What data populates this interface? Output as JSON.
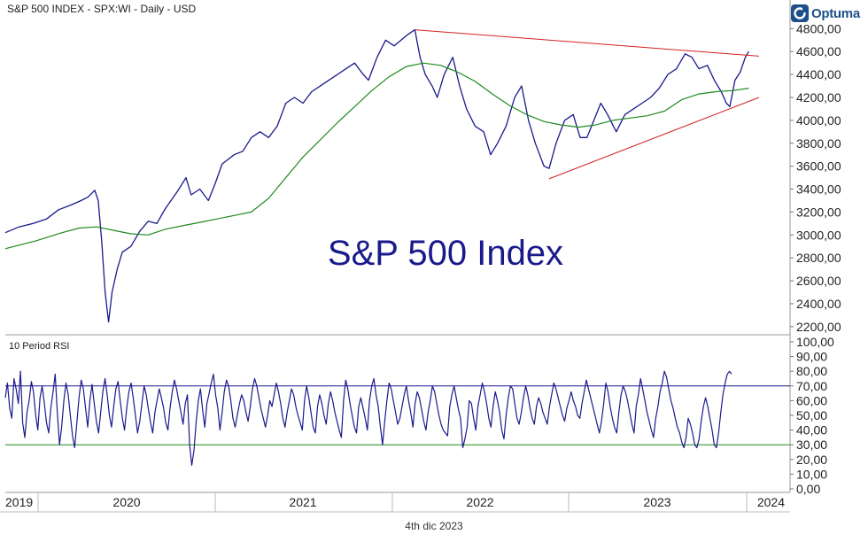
{
  "header": {
    "title": "S&P 500 INDEX - SPX:WI - Daily - USD",
    "brand": "Optuma",
    "date": "4th dic 2023"
  },
  "colors": {
    "price": "#1a1a8c",
    "ma": "#1f8a1f",
    "trendline": "#d42020",
    "rsi": "#1a1a8c",
    "rsi_upper": "#1a1a8c",
    "rsi_lower": "#1f8a1f"
  },
  "chart_data": [
    {
      "type": "line",
      "annotation": "S&P 500 Index",
      "x_ticks": [
        "2019",
        "2020",
        "2021",
        "2022",
        "2023",
        "2024"
      ],
      "y_ticks": [
        "2200,00",
        "2400,00",
        "2600,00",
        "2800,00",
        "3000,00",
        "3200,00",
        "3400,00",
        "3600,00",
        "3800,00",
        "4000,00",
        "4200,00",
        "4400,00",
        "4600,00",
        "4800,00"
      ],
      "ylim": [
        2160,
        4880
      ],
      "x_range": [
        2019.62,
        2024.18
      ],
      "series": [
        {
          "role": "price",
          "points": [
            [
              2019.62,
              3020
            ],
            [
              2019.7,
              3070
            ],
            [
              2019.78,
              3100
            ],
            [
              2019.86,
              3140
            ],
            [
              2019.93,
              3220
            ],
            [
              2020.0,
              3260
            ],
            [
              2020.06,
              3300
            ],
            [
              2020.1,
              3330
            ],
            [
              2020.14,
              3390
            ],
            [
              2020.16,
              3300
            ],
            [
              2020.18,
              2950
            ],
            [
              2020.2,
              2500
            ],
            [
              2020.22,
              2240
            ],
            [
              2020.24,
              2500
            ],
            [
              2020.27,
              2700
            ],
            [
              2020.3,
              2850
            ],
            [
              2020.35,
              2900
            ],
            [
              2020.4,
              3030
            ],
            [
              2020.45,
              3120
            ],
            [
              2020.5,
              3100
            ],
            [
              2020.55,
              3230
            ],
            [
              2020.62,
              3380
            ],
            [
              2020.67,
              3500
            ],
            [
              2020.7,
              3350
            ],
            [
              2020.75,
              3400
            ],
            [
              2020.8,
              3300
            ],
            [
              2020.84,
              3450
            ],
            [
              2020.88,
              3620
            ],
            [
              2020.95,
              3700
            ],
            [
              2021.0,
              3730
            ],
            [
              2021.05,
              3850
            ],
            [
              2021.1,
              3900
            ],
            [
              2021.15,
              3850
            ],
            [
              2021.2,
              3950
            ],
            [
              2021.25,
              4150
            ],
            [
              2021.3,
              4200
            ],
            [
              2021.35,
              4150
            ],
            [
              2021.4,
              4250
            ],
            [
              2021.45,
              4300
            ],
            [
              2021.5,
              4350
            ],
            [
              2021.55,
              4400
            ],
            [
              2021.6,
              4450
            ],
            [
              2021.65,
              4500
            ],
            [
              2021.7,
              4400
            ],
            [
              2021.73,
              4350
            ],
            [
              2021.78,
              4550
            ],
            [
              2021.83,
              4700
            ],
            [
              2021.88,
              4650
            ],
            [
              2021.92,
              4700
            ],
            [
              2021.96,
              4750
            ],
            [
              2022.0,
              4790
            ],
            [
              2022.03,
              4550
            ],
            [
              2022.06,
              4400
            ],
            [
              2022.1,
              4300
            ],
            [
              2022.13,
              4200
            ],
            [
              2022.17,
              4400
            ],
            [
              2022.22,
              4550
            ],
            [
              2022.26,
              4300
            ],
            [
              2022.3,
              4100
            ],
            [
              2022.35,
              3950
            ],
            [
              2022.4,
              3900
            ],
            [
              2022.44,
              3700
            ],
            [
              2022.48,
              3800
            ],
            [
              2022.53,
              3950
            ],
            [
              2022.58,
              4200
            ],
            [
              2022.62,
              4300
            ],
            [
              2022.66,
              4000
            ],
            [
              2022.7,
              3800
            ],
            [
              2022.75,
              3600
            ],
            [
              2022.78,
              3580
            ],
            [
              2022.82,
              3800
            ],
            [
              2022.87,
              4000
            ],
            [
              2022.92,
              4050
            ],
            [
              2022.96,
              3850
            ],
            [
              2023.0,
              3850
            ],
            [
              2023.04,
              4000
            ],
            [
              2023.08,
              4150
            ],
            [
              2023.12,
              4050
            ],
            [
              2023.17,
              3900
            ],
            [
              2023.22,
              4050
            ],
            [
              2023.27,
              4100
            ],
            [
              2023.32,
              4150
            ],
            [
              2023.37,
              4200
            ],
            [
              2023.42,
              4280
            ],
            [
              2023.47,
              4400
            ],
            [
              2023.52,
              4450
            ],
            [
              2023.57,
              4580
            ],
            [
              2023.61,
              4550
            ],
            [
              2023.65,
              4450
            ],
            [
              2023.7,
              4480
            ],
            [
              2023.74,
              4350
            ],
            [
              2023.78,
              4250
            ],
            [
              2023.81,
              4150
            ],
            [
              2023.83,
              4120
            ],
            [
              2023.86,
              4350
            ],
            [
              2023.89,
              4420
            ],
            [
              2023.92,
              4550
            ],
            [
              2023.94,
              4600
            ]
          ]
        },
        {
          "role": "moving-average",
          "points": [
            [
              2019.62,
              2880
            ],
            [
              2019.8,
              2950
            ],
            [
              2019.95,
              3020
            ],
            [
              2020.05,
              3060
            ],
            [
              2020.15,
              3070
            ],
            [
              2020.25,
              3040
            ],
            [
              2020.35,
              3010
            ],
            [
              2020.45,
              3000
            ],
            [
              2020.55,
              3050
            ],
            [
              2020.65,
              3080
            ],
            [
              2020.75,
              3110
            ],
            [
              2020.85,
              3140
            ],
            [
              2020.95,
              3170
            ],
            [
              2021.05,
              3200
            ],
            [
              2021.15,
              3320
            ],
            [
              2021.25,
              3500
            ],
            [
              2021.35,
              3680
            ],
            [
              2021.45,
              3830
            ],
            [
              2021.55,
              3980
            ],
            [
              2021.65,
              4120
            ],
            [
              2021.75,
              4260
            ],
            [
              2021.85,
              4380
            ],
            [
              2021.95,
              4470
            ],
            [
              2022.05,
              4500
            ],
            [
              2022.15,
              4480
            ],
            [
              2022.25,
              4420
            ],
            [
              2022.35,
              4340
            ],
            [
              2022.45,
              4230
            ],
            [
              2022.55,
              4130
            ],
            [
              2022.65,
              4050
            ],
            [
              2022.75,
              3990
            ],
            [
              2022.85,
              3960
            ],
            [
              2022.95,
              3940
            ],
            [
              2023.05,
              3960
            ],
            [
              2023.15,
              4000
            ],
            [
              2023.25,
              4020
            ],
            [
              2023.35,
              4040
            ],
            [
              2023.45,
              4080
            ],
            [
              2023.55,
              4180
            ],
            [
              2023.65,
              4230
            ],
            [
              2023.75,
              4250
            ],
            [
              2023.85,
              4260
            ],
            [
              2023.94,
              4280
            ]
          ]
        },
        {
          "role": "upper-trendline",
          "points": [
            [
              2022.0,
              4790
            ],
            [
              2024.0,
              4560
            ]
          ]
        },
        {
          "role": "lower-trendline",
          "points": [
            [
              2022.78,
              3490
            ],
            [
              2024.0,
              4200
            ]
          ]
        }
      ]
    },
    {
      "type": "line",
      "title": "10 Period RSI",
      "y_ticks": [
        "0,00",
        "10,00",
        "20,00",
        "30,00",
        "40,00",
        "50,00",
        "60,00",
        "70,00",
        "80,00",
        "90,00",
        "100,00"
      ],
      "ylim": [
        0,
        100
      ],
      "reference_lines": [
        70,
        30
      ],
      "series": [
        {
          "role": "rsi",
          "values": [
            62,
            72,
            55,
            48,
            75,
            68,
            58,
            80,
            45,
            35,
            52,
            60,
            73,
            66,
            50,
            40,
            62,
            70,
            58,
            45,
            38,
            55,
            66,
            78,
            52,
            30,
            42,
            60,
            72,
            64,
            50,
            36,
            28,
            45,
            62,
            74,
            68,
            55,
            42,
            60,
            71,
            58,
            46,
            38,
            52,
            66,
            75,
            64,
            50,
            42,
            56,
            68,
            73,
            60,
            48,
            40,
            55,
            66,
            72,
            62,
            50,
            38,
            46,
            58,
            70,
            64,
            54,
            45,
            38,
            52,
            60,
            68,
            62,
            55,
            45,
            40,
            55,
            66,
            74,
            68,
            60,
            52,
            44,
            58,
            64,
            30,
            16,
            26,
            45,
            60,
            68,
            54,
            42,
            58,
            65,
            72,
            78,
            64,
            55,
            40,
            52,
            66,
            74,
            70,
            60,
            48,
            42,
            50,
            58,
            64,
            60,
            52,
            46,
            56,
            68,
            75,
            70,
            62,
            54,
            48,
            42,
            50,
            60,
            56,
            64,
            72,
            66,
            58,
            48,
            42,
            52,
            60,
            68,
            64,
            56,
            50,
            45,
            40,
            60,
            70,
            62,
            52,
            42,
            38,
            56,
            64,
            58,
            50,
            44,
            58,
            66,
            60,
            52,
            46,
            40,
            35,
            60,
            74,
            68,
            58,
            50,
            42,
            38,
            56,
            62,
            55,
            48,
            40,
            60,
            70,
            75,
            64,
            56,
            42,
            30,
            46,
            60,
            72,
            68,
            60,
            52,
            44,
            48,
            56,
            64,
            70,
            60,
            52,
            42,
            58,
            66,
            62,
            54,
            46,
            40,
            52,
            60,
            70,
            66,
            58,
            50,
            44,
            40,
            38,
            36,
            56,
            64,
            70,
            62,
            54,
            48,
            28,
            34,
            42,
            60,
            58,
            48,
            40,
            56,
            64,
            72,
            66,
            58,
            48,
            42,
            56,
            66,
            60,
            52,
            40,
            34,
            50,
            62,
            70,
            68,
            58,
            48,
            44,
            52,
            62,
            70,
            64,
            55,
            48,
            44,
            56,
            62,
            58,
            52,
            48,
            44,
            56,
            64,
            72,
            68,
            62,
            56,
            50,
            46,
            55,
            60,
            66,
            60,
            56,
            50,
            48,
            58,
            66,
            74,
            68,
            62,
            56,
            50,
            44,
            38,
            46,
            58,
            72,
            66,
            56,
            48,
            42,
            38,
            52,
            64,
            70,
            66,
            60,
            52,
            44,
            38,
            56,
            64,
            75,
            68,
            60,
            52,
            46,
            40,
            35,
            48,
            56,
            66,
            72,
            80,
            76,
            68,
            60,
            55,
            48,
            42,
            38,
            32,
            28,
            35,
            48,
            44,
            38,
            30,
            28,
            34,
            46,
            56,
            62,
            56,
            48,
            40,
            30,
            28,
            38,
            52,
            64,
            72,
            78,
            80,
            78
          ],
          "ticks": [
            "2019",
            "2020",
            "2021",
            "2022",
            "2023",
            "2024"
          ]
        }
      ]
    }
  ]
}
